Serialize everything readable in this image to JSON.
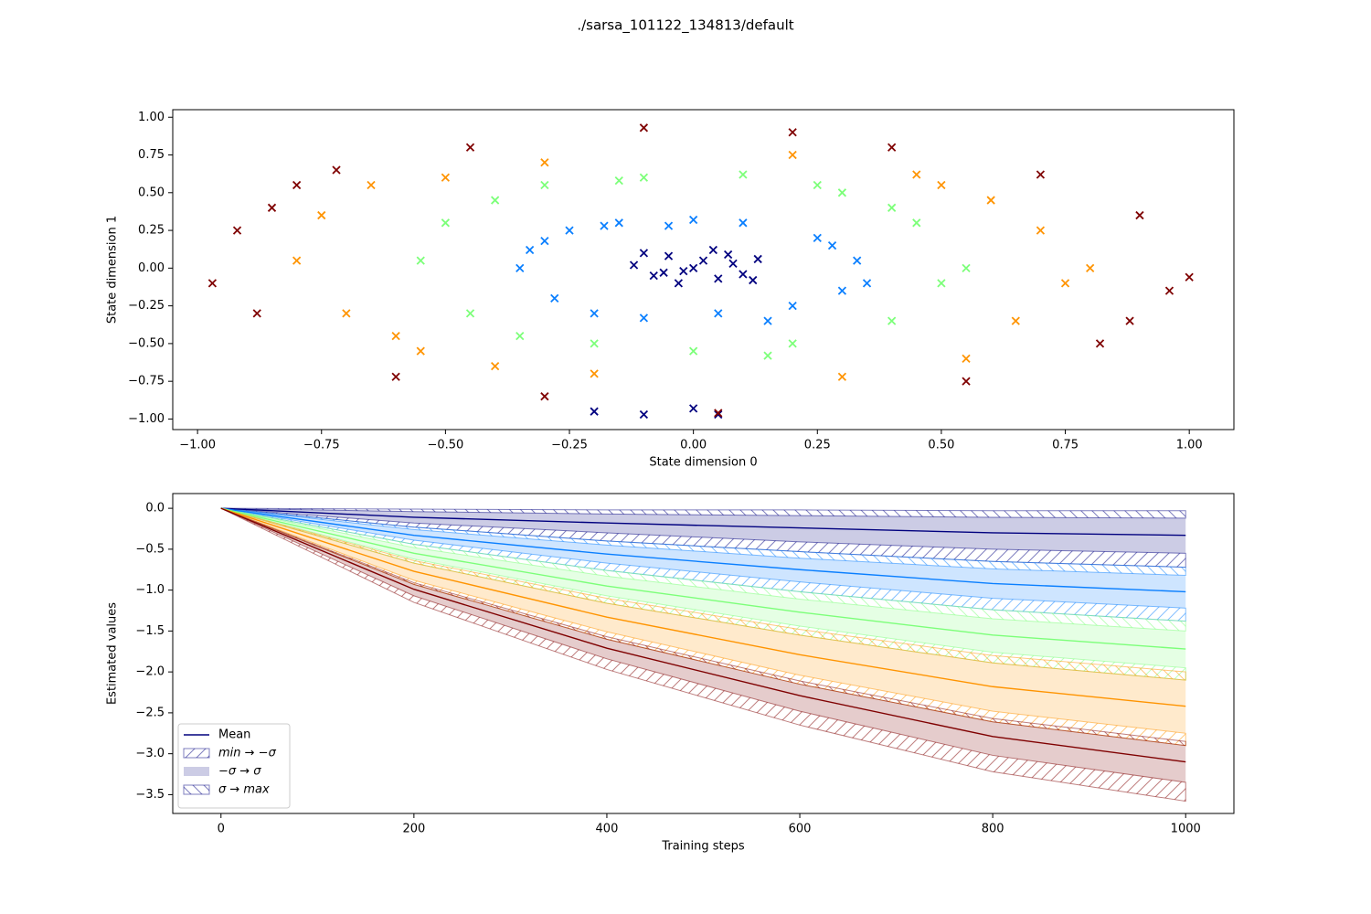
{
  "title": "./sarsa_101122_134813/default",
  "chart_data": [
    {
      "type": "scatter",
      "marker": "x",
      "xlabel": "State dimension 0",
      "ylabel": "State dimension 1",
      "xlim": [
        -1.05,
        1.09
      ],
      "ylim": [
        -1.07,
        1.05
      ],
      "xticks": [
        {
          "value": -1,
          "label": "−1.00"
        },
        {
          "value": -0.75,
          "label": "−0.75"
        },
        {
          "value": -0.5,
          "label": "−0.50"
        },
        {
          "value": -0.25,
          "label": "−0.25"
        },
        {
          "value": 0,
          "label": "0.00"
        },
        {
          "value": 0.25,
          "label": "0.25"
        },
        {
          "value": 0.5,
          "label": "0.50"
        },
        {
          "value": 0.75,
          "label": "0.75"
        },
        {
          "value": 1,
          "label": "1.00"
        }
      ],
      "yticks": [
        {
          "value": -1,
          "label": "−1.00"
        },
        {
          "value": -0.75,
          "label": "−0.75"
        },
        {
          "value": -0.5,
          "label": "−0.50"
        },
        {
          "value": -0.25,
          "label": "−0.25"
        },
        {
          "value": 0,
          "label": "0.00"
        },
        {
          "value": 0.25,
          "label": "0.25"
        },
        {
          "value": 0.5,
          "label": "0.50"
        },
        {
          "value": 0.75,
          "label": "0.75"
        },
        {
          "value": 1,
          "label": "1.00"
        }
      ],
      "series": [
        {
          "color": "#00007f",
          "x": [
            -0.12,
            -0.08,
            -0.05,
            -0.02,
            0.0,
            0.02,
            0.05,
            0.08,
            0.1,
            0.13,
            -0.1,
            -0.03,
            0.04,
            0.12,
            -0.06,
            0.07,
            -0.2,
            -0.1,
            0.0,
            0.05
          ],
          "y": [
            0.02,
            -0.05,
            0.08,
            -0.02,
            0.0,
            0.05,
            -0.07,
            0.03,
            -0.04,
            0.06,
            0.1,
            -0.1,
            0.12,
            -0.08,
            -0.03,
            0.09,
            -0.95,
            -0.97,
            -0.93,
            -0.97
          ]
        },
        {
          "color": "#0a7fff",
          "x": [
            -0.35,
            -0.3,
            -0.25,
            -0.2,
            -0.15,
            -0.1,
            0.0,
            0.1,
            0.2,
            0.25,
            0.3,
            0.33,
            -0.28,
            -0.18,
            0.15,
            0.28,
            0.05,
            -0.05,
            0.35,
            -0.33
          ],
          "y": [
            0.0,
            0.18,
            0.25,
            -0.3,
            0.3,
            -0.33,
            0.32,
            0.3,
            -0.25,
            0.2,
            -0.15,
            0.05,
            -0.2,
            0.28,
            -0.35,
            0.15,
            -0.3,
            0.28,
            -0.1,
            0.12
          ]
        },
        {
          "color": "#7cff79",
          "x": [
            -0.55,
            -0.5,
            -0.45,
            -0.4,
            -0.3,
            -0.2,
            -0.1,
            0.0,
            0.1,
            0.2,
            0.3,
            0.4,
            0.45,
            0.5,
            0.55,
            -0.35,
            0.25,
            -0.15,
            0.15,
            0.4
          ],
          "y": [
            0.05,
            0.3,
            -0.3,
            0.45,
            0.55,
            -0.5,
            0.6,
            -0.55,
            0.62,
            -0.5,
            0.5,
            -0.35,
            0.3,
            -0.1,
            0.0,
            -0.45,
            0.55,
            0.58,
            -0.58,
            0.4
          ]
        },
        {
          "color": "#ff9400",
          "x": [
            -0.8,
            -0.75,
            -0.7,
            -0.65,
            -0.6,
            -0.5,
            -0.4,
            -0.3,
            -0.2,
            0.2,
            0.3,
            0.45,
            0.55,
            0.6,
            0.65,
            0.7,
            0.75,
            0.8,
            -0.55,
            0.5
          ],
          "y": [
            0.05,
            0.35,
            -0.3,
            0.55,
            -0.45,
            0.6,
            -0.65,
            0.7,
            -0.7,
            0.75,
            -0.72,
            0.62,
            -0.6,
            0.45,
            -0.35,
            0.25,
            -0.1,
            0.0,
            -0.55,
            0.55
          ]
        },
        {
          "color": "#7f0000",
          "x": [
            -0.97,
            -0.92,
            -0.88,
            -0.8,
            -0.72,
            -0.6,
            -0.45,
            -0.3,
            -0.1,
            0.05,
            0.2,
            0.4,
            0.55,
            0.7,
            0.82,
            0.9,
            0.96,
            1.0,
            -0.85,
            0.88
          ],
          "y": [
            -0.1,
            0.25,
            -0.3,
            0.55,
            0.65,
            -0.72,
            0.8,
            -0.85,
            0.93,
            -0.96,
            0.9,
            0.8,
            -0.75,
            0.62,
            -0.5,
            0.35,
            -0.15,
            -0.06,
            0.4,
            -0.35
          ]
        }
      ]
    },
    {
      "type": "line",
      "xlabel": "Training steps",
      "ylabel": "Estimated values",
      "xlim": [
        -50,
        1050
      ],
      "ylim": [
        -3.73,
        0.18
      ],
      "xticks": [
        0,
        200,
        400,
        600,
        800,
        1000
      ],
      "yticks": [
        {
          "value": 0,
          "label": "0.0"
        },
        {
          "value": -0.5,
          "label": "−0.5"
        },
        {
          "value": -1,
          "label": "−1.0"
        },
        {
          "value": -1.5,
          "label": "−1.5"
        },
        {
          "value": -2,
          "label": "−2.0"
        },
        {
          "value": -2.5,
          "label": "−2.5"
        },
        {
          "value": -3,
          "label": "−3.0"
        },
        {
          "value": -3.5,
          "label": "−3.5"
        }
      ],
      "legend": {
        "loc": "lower left",
        "entries": [
          "Mean",
          "min → −σ",
          "−σ → σ",
          "σ → max"
        ]
      },
      "x": [
        0,
        200,
        400,
        600,
        800,
        1000
      ],
      "series": [
        {
          "color": "#00007f",
          "max": [
            0,
            -0.01,
            -0.02,
            -0.02,
            -0.03,
            -0.03
          ],
          "plus_sigma": [
            0,
            -0.04,
            -0.07,
            -0.09,
            -0.11,
            -0.12
          ],
          "mean": [
            0,
            -0.11,
            -0.18,
            -0.24,
            -0.3,
            -0.33
          ],
          "minus_sigma": [
            0,
            -0.18,
            -0.3,
            -0.41,
            -0.5,
            -0.55
          ],
          "min": [
            0,
            -0.23,
            -0.4,
            -0.53,
            -0.65,
            -0.72
          ]
        },
        {
          "color": "#0a7fff",
          "max": [
            0,
            -0.23,
            -0.4,
            -0.53,
            -0.65,
            -0.72
          ],
          "plus_sigma": [
            0,
            -0.26,
            -0.45,
            -0.61,
            -0.74,
            -0.82
          ],
          "mean": [
            0,
            -0.33,
            -0.56,
            -0.75,
            -0.92,
            -1.02
          ],
          "minus_sigma": [
            0,
            -0.39,
            -0.67,
            -0.9,
            -1.1,
            -1.22
          ],
          "min": [
            0,
            -0.44,
            -0.76,
            -1.02,
            -1.24,
            -1.38
          ]
        },
        {
          "color": "#7cff79",
          "max": [
            0,
            -0.44,
            -0.76,
            -1.02,
            -1.24,
            -1.38
          ],
          "plus_sigma": [
            0,
            -0.48,
            -0.83,
            -1.11,
            -1.35,
            -1.5
          ],
          "mean": [
            0,
            -0.55,
            -0.95,
            -1.27,
            -1.55,
            -1.72
          ],
          "minus_sigma": [
            0,
            -0.62,
            -1.07,
            -1.44,
            -1.76,
            -1.95
          ],
          "min": [
            0,
            -0.67,
            -1.16,
            -1.55,
            -1.89,
            -2.1
          ]
        },
        {
          "color": "#ff9400",
          "max": [
            0,
            -0.64,
            -1.1,
            -1.48,
            -1.8,
            -2.0
          ],
          "plus_sigma": [
            0,
            -0.67,
            -1.16,
            -1.55,
            -1.89,
            -2.1
          ],
          "mean": [
            0,
            -0.77,
            -1.33,
            -1.79,
            -2.18,
            -2.42
          ],
          "minus_sigma": [
            0,
            -0.88,
            -1.51,
            -2.04,
            -2.48,
            -2.75
          ],
          "min": [
            0,
            -0.93,
            -1.6,
            -2.15,
            -2.61,
            -2.9
          ]
        },
        {
          "color": "#7f0000",
          "max": [
            0,
            -0.91,
            -1.57,
            -2.11,
            -2.57,
            -2.85
          ],
          "plus_sigma": [
            0,
            -0.93,
            -1.6,
            -2.15,
            -2.61,
            -2.9
          ],
          "mean": [
            0,
            -0.99,
            -1.71,
            -2.29,
            -2.79,
            -3.1
          ],
          "minus_sigma": [
            0,
            -1.07,
            -1.84,
            -2.48,
            -3.02,
            -3.35
          ],
          "min": [
            0,
            -1.15,
            -1.97,
            -2.65,
            -3.22,
            -3.58
          ]
        }
      ]
    }
  ]
}
